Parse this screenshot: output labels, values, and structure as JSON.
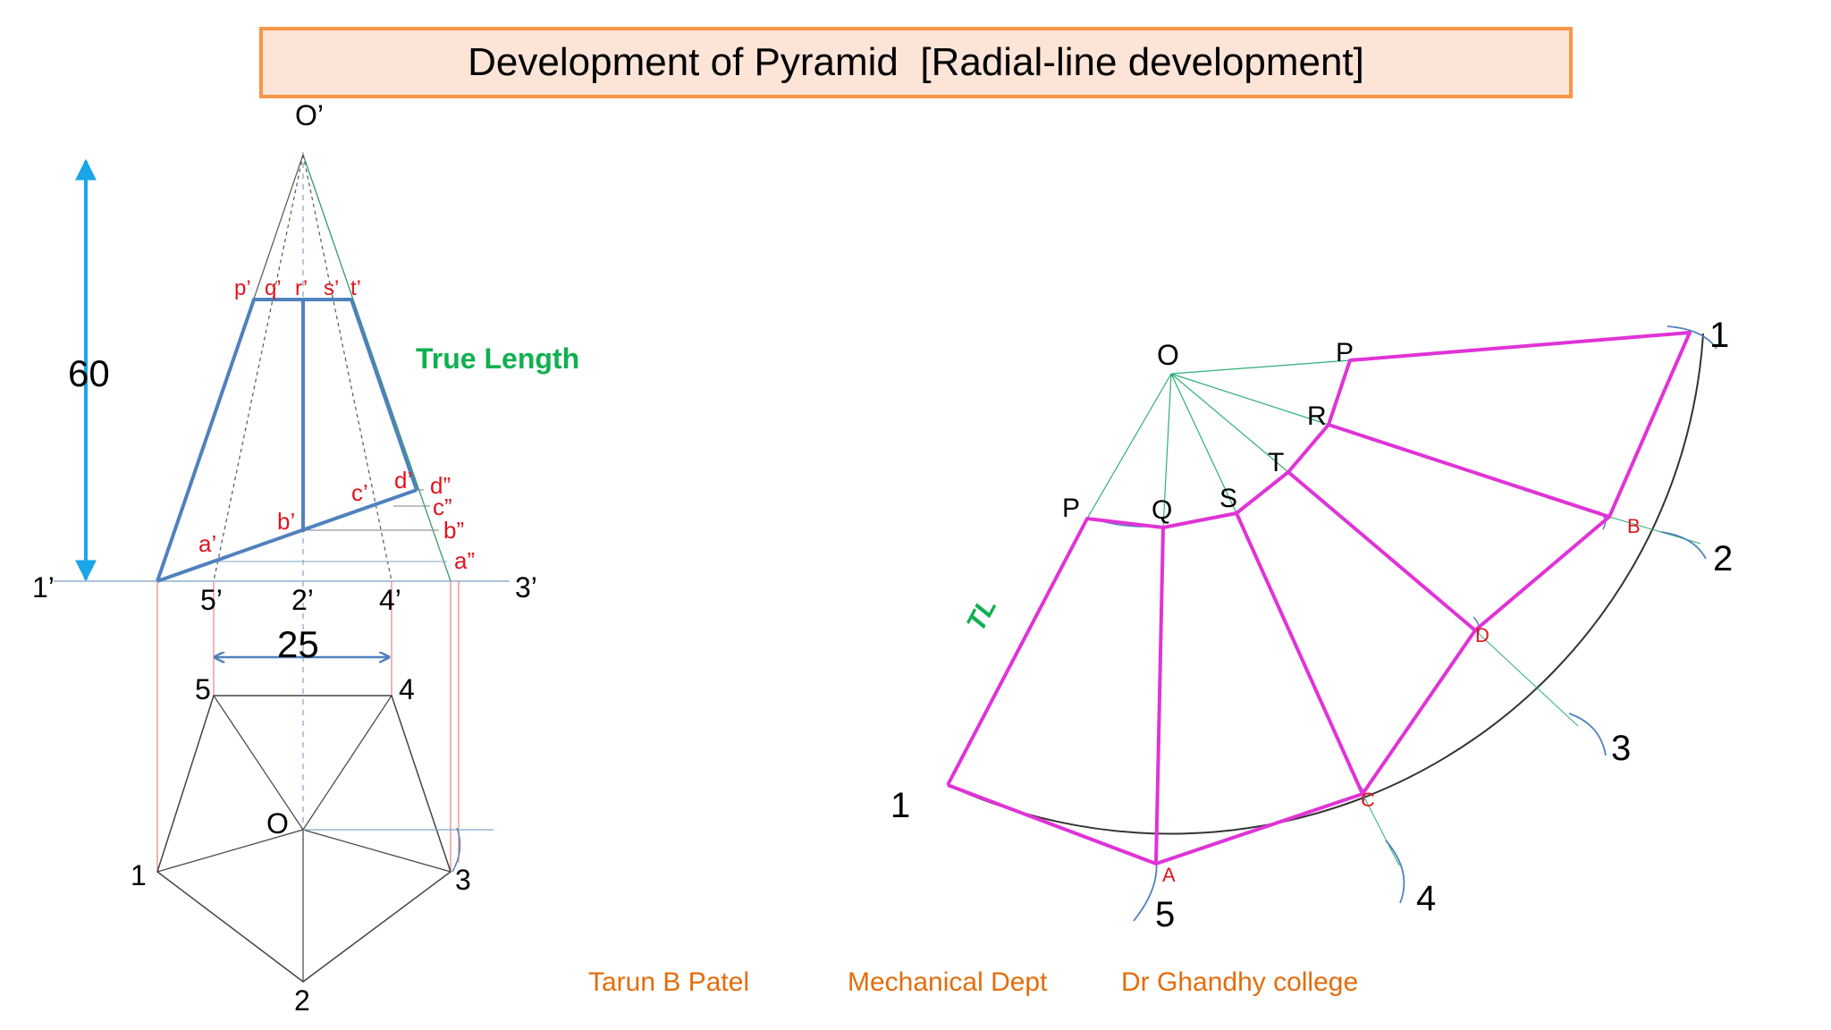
{
  "title": "Development of Pyramid  [Radial-line development]",
  "dimensions": {
    "height": "60",
    "side": "25"
  },
  "annotations": {
    "true_length": "True Length",
    "tl": "TL"
  },
  "front_view_labels": {
    "apex": "O’",
    "p": "p’",
    "q": "q’",
    "r": "r’",
    "s": "s’",
    "t": "t’",
    "a": "a’",
    "b": "b’",
    "c": "c’",
    "d": "d’",
    "d2": "d”",
    "c2": "c”",
    "b2": "b”",
    "a2": "a”",
    "base1": "1’",
    "base5": "5’",
    "base2": "2’",
    "base4": "4’",
    "base3": "3’"
  },
  "top_view_labels": {
    "center": "O",
    "v1": "1",
    "v2": "2",
    "v3": "3",
    "v4": "4",
    "v5": "5"
  },
  "development_labels": {
    "apex": "O",
    "P_top": "P",
    "R": "R",
    "T": "T",
    "S": "S",
    "Q": "Q",
    "P_left": "P",
    "A": "A",
    "B": "B",
    "C": "C",
    "D": "D",
    "n1_left": "1",
    "n5": "5",
    "n4": "4",
    "n3": "3",
    "n2": "2",
    "n1_right": "1"
  },
  "footer": {
    "author": "Tarun B Patel",
    "department": "Mechanical Dept",
    "college": "Dr Ghandhy college"
  },
  "colors": {
    "section_blue": "#4f81bd",
    "development_magenta": "#e033d6",
    "label_red": "#e0141e",
    "dimension_cyan": "#1aa6e8",
    "true_length_green": "#10b050",
    "footer_orange": "#e46c0a",
    "title_fill": "#fce4d6",
    "title_border": "#f79646"
  }
}
